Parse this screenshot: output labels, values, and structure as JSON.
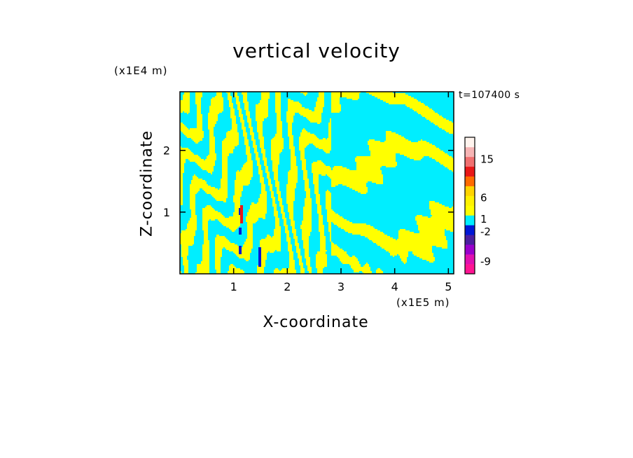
{
  "chart_data": {
    "type": "heatmap",
    "title": "vertical velocity",
    "xlabel": "X-coordinate",
    "ylabel": "Z-coordinate",
    "x_scale_label": "(x1E5 m)",
    "z_scale_label": "(x1E4 m)",
    "time_label": "t=107400 s",
    "x_range": [
      0,
      5.1
    ],
    "z_range": [
      0,
      2.95
    ],
    "x_ticks": [
      1,
      2,
      3,
      4,
      5
    ],
    "z_ticks": [
      1,
      2
    ],
    "colorbar": {
      "levels": [
        {
          "color": "#ff1493"
        },
        {
          "color": "#e010b0"
        },
        {
          "color": "#9900cc"
        },
        {
          "color": "#4b1fa0"
        },
        {
          "color": "#0018d6"
        },
        {
          "color": "#00eeff"
        },
        {
          "color": "#ffff00"
        },
        {
          "color": "#fff200"
        },
        {
          "color": "#ffd400"
        },
        {
          "color": "#ff6a00"
        },
        {
          "color": "#e81818"
        },
        {
          "color": "#f07070"
        },
        {
          "color": "#f6b4b4"
        },
        {
          "color": "#fff4ee"
        }
      ],
      "tick_labels": [
        "15",
        "6",
        "1",
        "-2",
        "-9"
      ],
      "tick_values": [
        15,
        6,
        1,
        -2,
        -9
      ]
    },
    "field_colors": {
      "positive": "#ffff00",
      "negative": "#00eeff",
      "strong_negative": "#0018d6",
      "strong_positive": "#e81818"
    }
  }
}
